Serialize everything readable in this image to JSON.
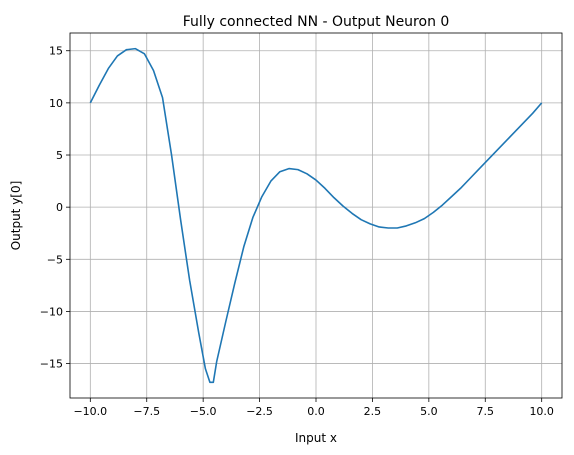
{
  "chart_data": {
    "type": "line",
    "title": "Fully connected NN - Output Neuron 0",
    "xlabel": "Input x",
    "ylabel": "Output y[0]",
    "xlim": [
      -10.9,
      10.9
    ],
    "ylim": [
      -18.3,
      16.7
    ],
    "grid": true,
    "xticks": [
      -10,
      -7.5,
      -5,
      -2.5,
      0,
      2.5,
      5,
      7.5,
      10
    ],
    "xtick_labels": [
      "−10.0",
      "−7.5",
      "−5.0",
      "−2.5",
      "0.0",
      "2.5",
      "5.0",
      "7.5",
      "10.0"
    ],
    "yticks": [
      -15,
      -10,
      -5,
      0,
      5,
      10,
      15
    ],
    "ytick_labels": [
      "−15",
      "−10",
      "−5",
      "0",
      "5",
      "10",
      "15"
    ],
    "series": [
      {
        "color": "#1f77b4",
        "x": [
          -10,
          -9.6,
          -9.2,
          -8.8,
          -8.4,
          -8.0,
          -7.6,
          -7.2,
          -6.8,
          -6.4,
          -6.0,
          -5.6,
          -5.2,
          -4.9,
          -4.7,
          -4.55,
          -4.4,
          -4.0,
          -3.6,
          -3.2,
          -2.8,
          -2.4,
          -2.0,
          -1.6,
          -1.2,
          -0.8,
          -0.4,
          0.0,
          0.4,
          0.8,
          1.2,
          1.6,
          2.0,
          2.4,
          2.8,
          3.2,
          3.6,
          4.0,
          4.4,
          4.8,
          5.2,
          5.6,
          6.0,
          6.4,
          6.8,
          7.2,
          7.6,
          8.0,
          8.4,
          8.8,
          9.2,
          9.6,
          10.0
        ],
        "y": [
          10.0,
          11.7,
          13.3,
          14.5,
          15.1,
          15.2,
          14.7,
          13.1,
          10.5,
          5.0,
          -1.2,
          -7.0,
          -12.0,
          -15.5,
          -16.8,
          -16.8,
          -14.8,
          -11.0,
          -7.3,
          -3.8,
          -1.0,
          1.0,
          2.5,
          3.4,
          3.7,
          3.6,
          3.2,
          2.6,
          1.8,
          0.9,
          0.1,
          -0.6,
          -1.2,
          -1.6,
          -1.9,
          -2.0,
          -2.0,
          -1.8,
          -1.5,
          -1.1,
          -0.5,
          0.2,
          1.0,
          1.8,
          2.7,
          3.6,
          4.5,
          5.4,
          6.3,
          7.2,
          8.1,
          9.0,
          10.0
        ]
      }
    ]
  }
}
